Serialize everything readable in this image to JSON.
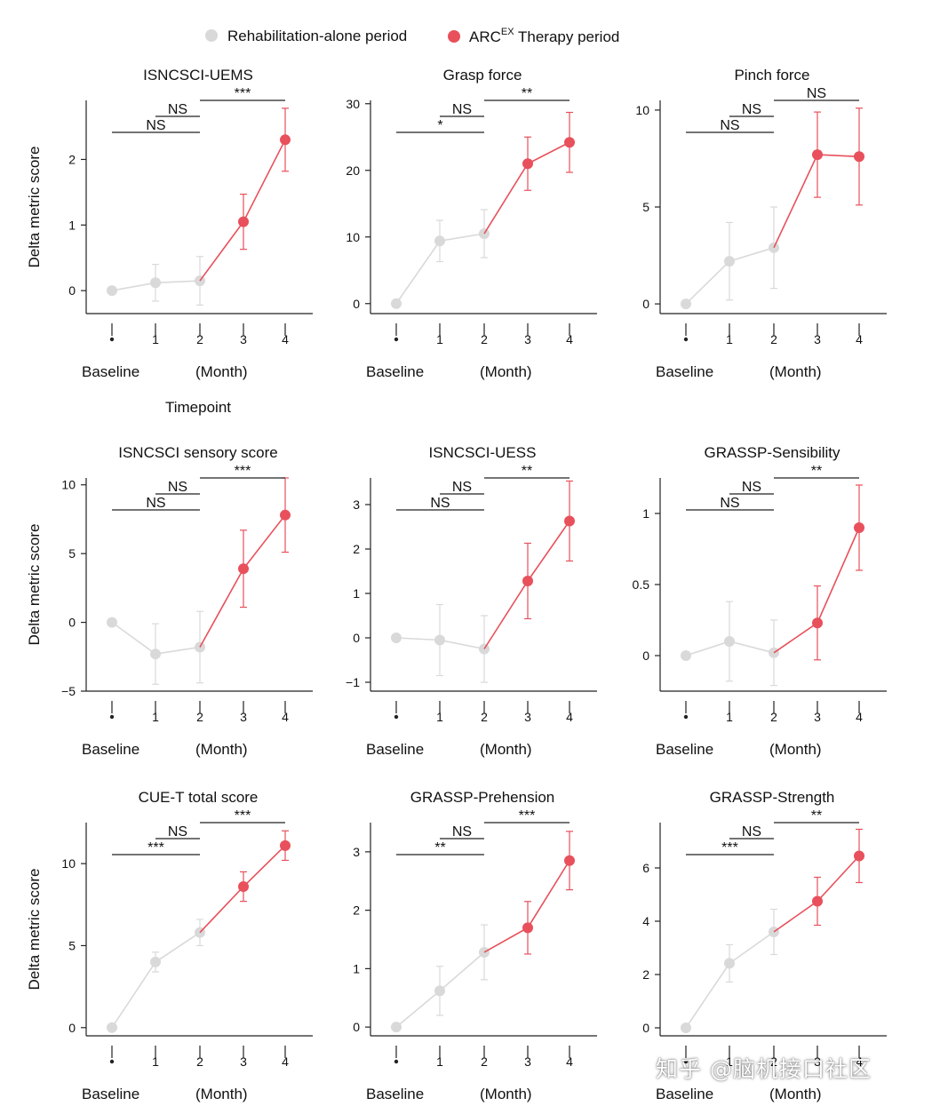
{
  "legend": {
    "rehab_label": "Rehabilitation-alone period",
    "arc_label_main": "ARC",
    "arc_label_sup": "EX",
    "arc_label_rest": " Therapy period"
  },
  "colors": {
    "rehab": "#d9d9d9",
    "arc": "#e8505b",
    "axis": "#222222"
  },
  "labels": {
    "ylabel": "Delta metric score",
    "baseline": "Baseline",
    "month": "(Month)",
    "timepoint": "Timepoint"
  },
  "watermark": "知乎 @脑机接口社区",
  "chart_data": [
    {
      "type": "line",
      "title": "ISNCSCI-UEMS",
      "ylim": [
        -0.35,
        2.9
      ],
      "yticks": [
        0,
        1,
        2
      ],
      "x_ticks": [
        "",
        "1",
        "2",
        "3",
        "4"
      ],
      "series": [
        {
          "name": "Rehabilitation-alone period",
          "x": [
            0,
            1,
            2
          ],
          "values": [
            0,
            0.12,
            0.15
          ],
          "err_low": [
            0,
            0.28,
            0.37
          ],
          "err_high": [
            0,
            0.28,
            0.37
          ]
        },
        {
          "name": "ARCEX Therapy period",
          "x": [
            2,
            3,
            4
          ],
          "values": [
            0.15,
            1.05,
            2.3
          ],
          "err_low": [
            0,
            0.42,
            0.48
          ],
          "err_high": [
            0,
            0.42,
            0.48
          ]
        }
      ],
      "significance": [
        {
          "from": 0,
          "to": 2,
          "label": "NS"
        },
        {
          "from": 1,
          "to": 2,
          "label": "NS"
        },
        {
          "from": 2,
          "to": 4,
          "label": "***"
        }
      ]
    },
    {
      "type": "line",
      "title": "Grasp force",
      "ylim": [
        -1.5,
        30.5
      ],
      "yticks": [
        0,
        10,
        20,
        30
      ],
      "x_ticks": [
        "",
        "1",
        "2",
        "3",
        "4"
      ],
      "series": [
        {
          "name": "Rehabilitation-alone period",
          "x": [
            0,
            1,
            2
          ],
          "values": [
            0,
            9.4,
            10.5
          ],
          "err_low": [
            0,
            3.1,
            3.6
          ],
          "err_high": [
            0,
            3.1,
            3.6
          ]
        },
        {
          "name": "ARCEX Therapy period",
          "x": [
            2,
            3,
            4
          ],
          "values": [
            10.5,
            21,
            24.2
          ],
          "err_low": [
            0,
            4,
            4.5
          ],
          "err_high": [
            0,
            4,
            4.5
          ]
        }
      ],
      "significance": [
        {
          "from": 0,
          "to": 2,
          "label": "*"
        },
        {
          "from": 1,
          "to": 2,
          "label": "NS"
        },
        {
          "from": 2,
          "to": 4,
          "label": "**"
        }
      ]
    },
    {
      "type": "line",
      "title": "Pinch force",
      "ylim": [
        -0.5,
        10.5
      ],
      "yticks": [
        0,
        5,
        10
      ],
      "x_ticks": [
        "",
        "1",
        "2",
        "3",
        "4"
      ],
      "series": [
        {
          "name": "Rehabilitation-alone period",
          "x": [
            0,
            1,
            2
          ],
          "values": [
            0,
            2.2,
            2.9
          ],
          "err_low": [
            0,
            2,
            2.1
          ],
          "err_high": [
            0,
            2,
            2.1
          ]
        },
        {
          "name": "ARCEX Therapy period",
          "x": [
            2,
            3,
            4
          ],
          "values": [
            2.9,
            7.7,
            7.6
          ],
          "err_low": [
            0,
            2.2,
            2.5
          ],
          "err_high": [
            0,
            2.2,
            2.5
          ]
        }
      ],
      "significance": [
        {
          "from": 0,
          "to": 2,
          "label": "NS"
        },
        {
          "from": 1,
          "to": 2,
          "label": "NS"
        },
        {
          "from": 2,
          "to": 4,
          "label": "NS"
        }
      ]
    },
    {
      "type": "line",
      "title": "ISNCSCI sensory score",
      "ylim": [
        -5,
        10.5
      ],
      "yticks": [
        -5,
        0,
        5,
        10
      ],
      "x_ticks": [
        "",
        "1",
        "2",
        "3",
        "4"
      ],
      "series": [
        {
          "name": "Rehabilitation-alone period",
          "x": [
            0,
            1,
            2
          ],
          "values": [
            0,
            -2.3,
            -1.8
          ],
          "err_low": [
            0,
            2.2,
            2.6
          ],
          "err_high": [
            0,
            2.2,
            2.6
          ]
        },
        {
          "name": "ARCEX Therapy period",
          "x": [
            2,
            3,
            4
          ],
          "values": [
            -1.8,
            3.9,
            7.8
          ],
          "err_low": [
            0,
            2.8,
            2.7
          ],
          "err_high": [
            0,
            2.8,
            2.7
          ]
        }
      ],
      "significance": [
        {
          "from": 0,
          "to": 2,
          "label": "NS"
        },
        {
          "from": 1,
          "to": 2,
          "label": "NS"
        },
        {
          "from": 2,
          "to": 4,
          "label": "***"
        }
      ]
    },
    {
      "type": "line",
      "title": "ISNCSCI-UESS",
      "ylim": [
        -1.2,
        3.6
      ],
      "yticks": [
        -1,
        0,
        1,
        2,
        3
      ],
      "x_ticks": [
        "",
        "1",
        "2",
        "3",
        "4"
      ],
      "series": [
        {
          "name": "Rehabilitation-alone period",
          "x": [
            0,
            1,
            2
          ],
          "values": [
            0,
            -0.05,
            -0.25
          ],
          "err_low": [
            0,
            0.8,
            0.75
          ],
          "err_high": [
            0,
            0.8,
            0.75
          ]
        },
        {
          "name": "ARCEX Therapy period",
          "x": [
            2,
            3,
            4
          ],
          "values": [
            -0.25,
            1.28,
            2.63
          ],
          "err_low": [
            0,
            0.85,
            0.9
          ],
          "err_high": [
            0,
            0.85,
            0.9
          ]
        }
      ],
      "significance": [
        {
          "from": 0,
          "to": 2,
          "label": "NS"
        },
        {
          "from": 1,
          "to": 2,
          "label": "NS"
        },
        {
          "from": 2,
          "to": 4,
          "label": "**"
        }
      ]
    },
    {
      "type": "line",
      "title": "GRASSP-Sensibility",
      "ylim": [
        -0.25,
        1.25
      ],
      "yticks": [
        0,
        0.5,
        1
      ],
      "x_ticks": [
        "",
        "1",
        "2",
        "3",
        "4"
      ],
      "series": [
        {
          "name": "Rehabilitation-alone period",
          "x": [
            0,
            1,
            2
          ],
          "values": [
            0,
            0.1,
            0.02
          ],
          "err_low": [
            0,
            0.28,
            0.23
          ],
          "err_high": [
            0,
            0.28,
            0.23
          ]
        },
        {
          "name": "ARCEX Therapy period",
          "x": [
            2,
            3,
            4
          ],
          "values": [
            0.02,
            0.23,
            0.9
          ],
          "err_low": [
            0,
            0.26,
            0.3
          ],
          "err_high": [
            0,
            0.26,
            0.3
          ]
        }
      ],
      "significance": [
        {
          "from": 0,
          "to": 2,
          "label": "NS"
        },
        {
          "from": 1,
          "to": 2,
          "label": "NS"
        },
        {
          "from": 2,
          "to": 4,
          "label": "**"
        }
      ]
    },
    {
      "type": "line",
      "title": "CUE-T total score",
      "ylim": [
        -0.5,
        12.5
      ],
      "yticks": [
        0,
        5,
        10
      ],
      "x_ticks": [
        "",
        "1",
        "2",
        "3",
        "4"
      ],
      "series": [
        {
          "name": "Rehabilitation-alone period",
          "x": [
            0,
            1,
            2
          ],
          "values": [
            0,
            4,
            5.8
          ],
          "err_low": [
            0,
            0.6,
            0.8
          ],
          "err_high": [
            0,
            0.6,
            0.8
          ]
        },
        {
          "name": "ARCEX Therapy period",
          "x": [
            2,
            3,
            4
          ],
          "values": [
            5.8,
            8.6,
            11.1
          ],
          "err_low": [
            0,
            0.9,
            0.9
          ],
          "err_high": [
            0,
            0.9,
            0.9
          ]
        }
      ],
      "significance": [
        {
          "from": 0,
          "to": 2,
          "label": "***"
        },
        {
          "from": 1,
          "to": 2,
          "label": "NS"
        },
        {
          "from": 2,
          "to": 4,
          "label": "***"
        }
      ]
    },
    {
      "type": "line",
      "title": "GRASSP-Prehension",
      "ylim": [
        -0.15,
        3.5
      ],
      "yticks": [
        0,
        1,
        2,
        3
      ],
      "x_ticks": [
        "",
        "1",
        "2",
        "3",
        "4"
      ],
      "series": [
        {
          "name": "Rehabilitation-alone period",
          "x": [
            0,
            1,
            2
          ],
          "values": [
            0,
            0.62,
            1.28
          ],
          "err_low": [
            0,
            0.42,
            0.47
          ],
          "err_high": [
            0,
            0.42,
            0.47
          ]
        },
        {
          "name": "ARCEX Therapy period",
          "x": [
            2,
            3,
            4
          ],
          "values": [
            1.28,
            1.7,
            2.85
          ],
          "err_low": [
            0,
            0.45,
            0.5
          ],
          "err_high": [
            0,
            0.45,
            0.5
          ]
        }
      ],
      "significance": [
        {
          "from": 0,
          "to": 2,
          "label": "**"
        },
        {
          "from": 1,
          "to": 2,
          "label": "NS"
        },
        {
          "from": 2,
          "to": 4,
          "label": "***"
        }
      ]
    },
    {
      "type": "line",
      "title": "GRASSP-Strength",
      "ylim": [
        -0.3,
        7.7
      ],
      "yticks": [
        0,
        2,
        4,
        6
      ],
      "x_ticks": [
        "",
        "1",
        "2",
        "3",
        "4"
      ],
      "series": [
        {
          "name": "Rehabilitation-alone period",
          "x": [
            0,
            1,
            2
          ],
          "values": [
            0,
            2.42,
            3.6
          ],
          "err_low": [
            0,
            0.7,
            0.85
          ],
          "err_high": [
            0,
            0.7,
            0.85
          ]
        },
        {
          "name": "ARCEX Therapy period",
          "x": [
            2,
            3,
            4
          ],
          "values": [
            3.6,
            4.75,
            6.45
          ],
          "err_low": [
            0,
            0.9,
            1.0
          ],
          "err_high": [
            0,
            0.9,
            1.0
          ]
        }
      ],
      "significance": [
        {
          "from": 0,
          "to": 2,
          "label": "***"
        },
        {
          "from": 1,
          "to": 2,
          "label": "NS"
        },
        {
          "from": 2,
          "to": 4,
          "label": "**"
        }
      ]
    }
  ]
}
